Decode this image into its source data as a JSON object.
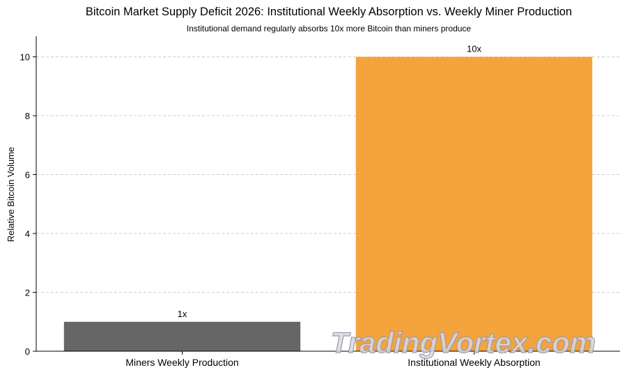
{
  "chart_data": {
    "type": "bar",
    "title": "Bitcoin Market Supply Deficit 2026: Institutional Weekly Absorption vs. Weekly Miner Production",
    "subtitle": "Institutional demand regularly absorbs 10x more Bitcoin than miners produce",
    "xlabel": "",
    "ylabel": "Relative Bitcoin Volume",
    "categories": [
      "Miners Weekly Production",
      "Institutional Weekly Absorption"
    ],
    "values": [
      1,
      10
    ],
    "data_labels": [
      "1x",
      "10x"
    ],
    "colors": [
      "#666666",
      "#f5a33c"
    ],
    "ylim": [
      0,
      10.7
    ],
    "yticks": [
      0,
      2,
      4,
      6,
      8,
      10
    ],
    "grid": "horizontal-dashed",
    "legend": "none"
  },
  "watermark": "TradingVortex.com"
}
